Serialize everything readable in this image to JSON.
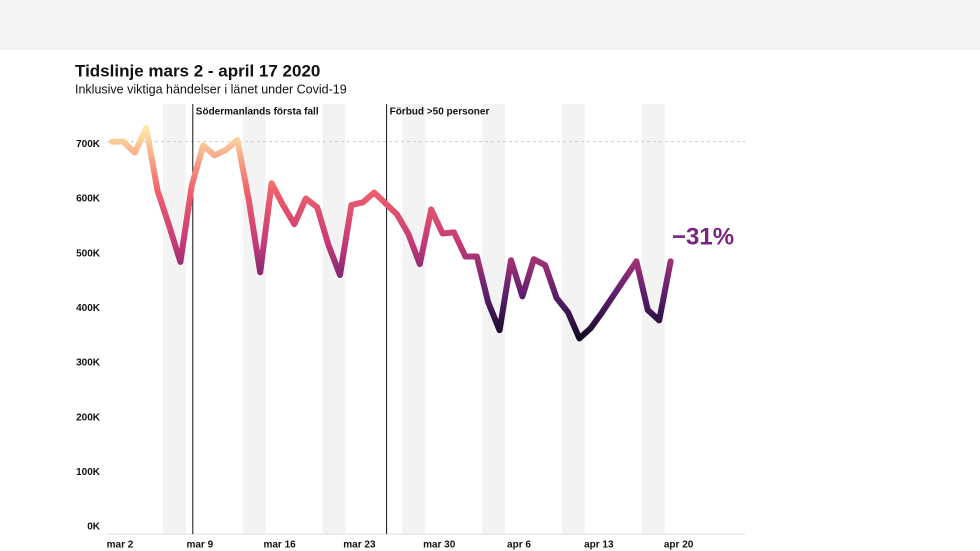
{
  "chart_data": {
    "type": "line",
    "title": "Tidslinje mars 2 - april 17 2020",
    "subtitle": "Inklusive viktiga händelser i länet under Covid-19",
    "categories": [
      "mar 2",
      null,
      null,
      null,
      null,
      null,
      null,
      "mar 9",
      null,
      null,
      null,
      null,
      null,
      null,
      "mar 16",
      null,
      null,
      null,
      null,
      null,
      null,
      "mar 23",
      null,
      null,
      null,
      null,
      null,
      null,
      "mar 30",
      null,
      null,
      null,
      null,
      null,
      null,
      "apr 6",
      null,
      null,
      null,
      null,
      null,
      null,
      "apr 13",
      null,
      null,
      null,
      null,
      null,
      null,
      "apr 20"
    ],
    "values": [
      705000,
      705000,
      685000,
      730000,
      615000,
      552000,
      485000,
      625000,
      698000,
      680000,
      690000,
      708000,
      598000,
      466000,
      629000,
      589000,
      554000,
      601000,
      585000,
      515000,
      461000,
      589000,
      594000,
      612000,
      592000,
      572000,
      536000,
      481000,
      581000,
      537000,
      539000,
      495000,
      495000,
      411000,
      360000,
      488000,
      422000,
      490000,
      479000,
      419000,
      393000,
      345000,
      364000,
      393000,
      424000,
      455000,
      486000,
      397000,
      378000,
      486000
    ],
    "ylim": [
      0,
      730000
    ],
    "yticks": [
      {
        "value": 0,
        "label": "0K"
      },
      {
        "value": 100000,
        "label": "100K"
      },
      {
        "value": 200000,
        "label": "200K"
      },
      {
        "value": 300000,
        "label": "300K"
      },
      {
        "value": 400000,
        "label": "400K"
      },
      {
        "value": 500000,
        "label": "500K"
      },
      {
        "value": 600000,
        "label": "600K"
      },
      {
        "value": 700000,
        "label": "700K"
      }
    ],
    "annotations": [
      "Södermanlands första fall",
      "Förbud >50 personer"
    ],
    "change_label": "−31%",
    "change_color": "#7a2382"
  }
}
